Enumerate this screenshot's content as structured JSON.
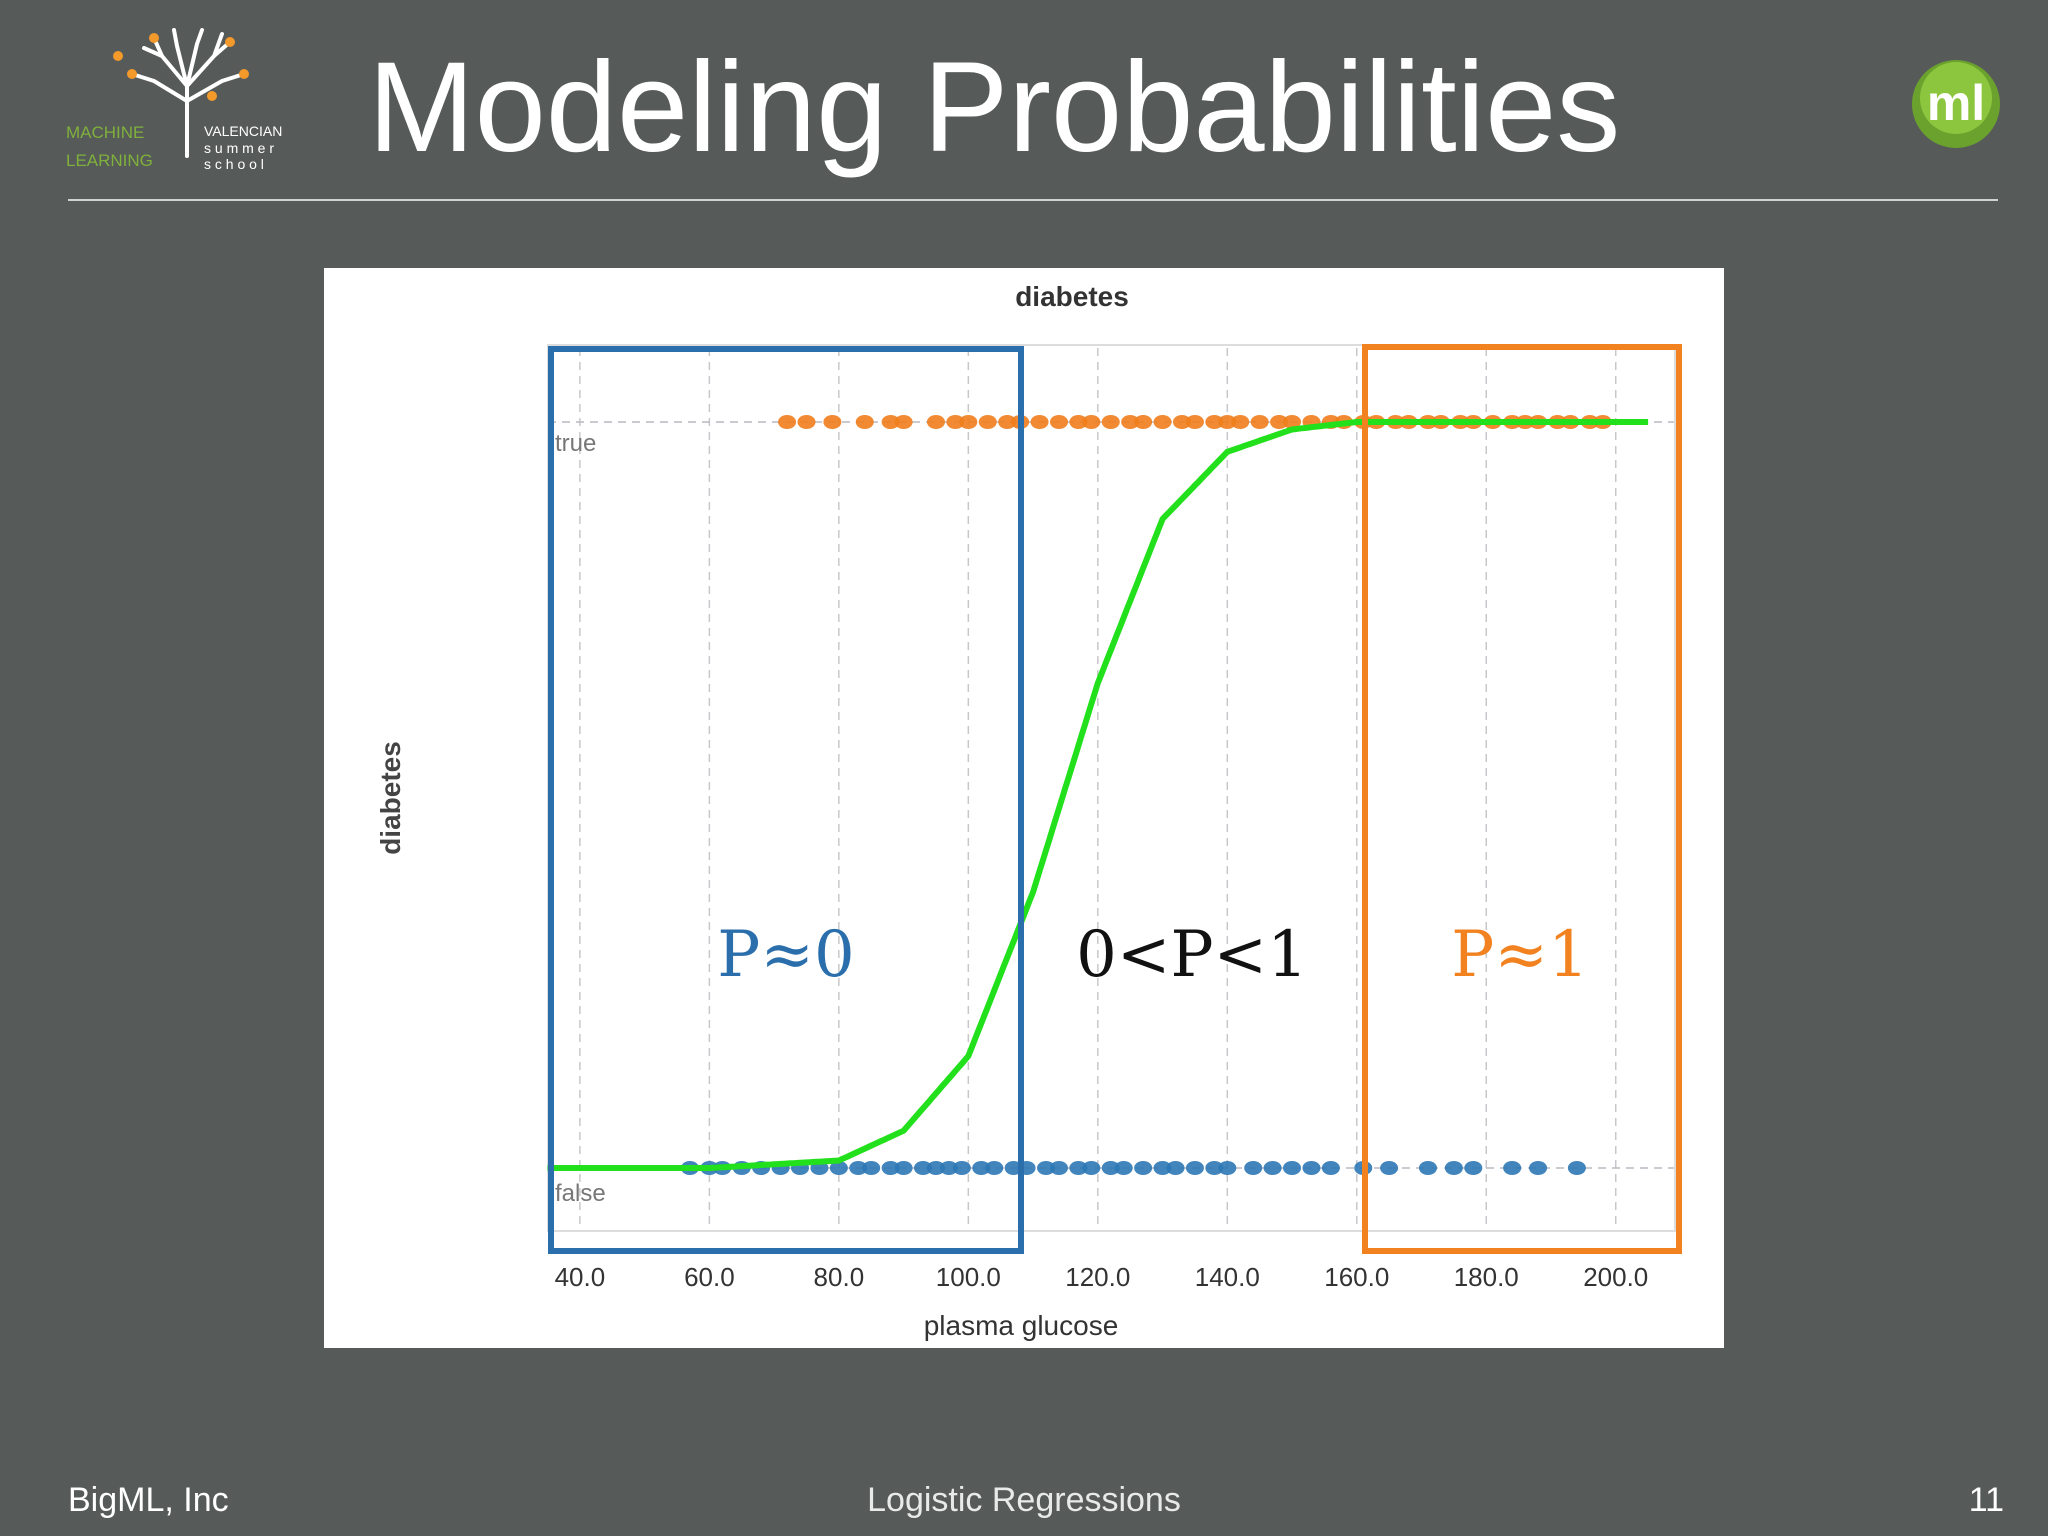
{
  "slide": {
    "title": "Modeling Probabilities",
    "footer_left": "BigML, Inc",
    "footer_center": "Logistic Regressions",
    "page_number": "11"
  },
  "logos": {
    "left": {
      "line1_left": "MACHINE",
      "line2_left": "LEARNING",
      "line1_right": "VALENCIAN",
      "line2_right": "s u m m e r",
      "line3_right": "s c h o o l"
    },
    "right": {
      "text": "ml"
    }
  },
  "colors": {
    "background": "#565b59",
    "true_points": "#f07d1c",
    "false_points": "#2e78b5",
    "curve": "#22e01b",
    "box_left": "#2a6fab",
    "box_right": "#f28220",
    "logo_green": "#7fb03b",
    "logo_orange": "#f39a2b"
  },
  "chart_data": {
    "type": "scatter",
    "title": "diabetes",
    "xlabel": "plasma glucose",
    "ylabel": "diabetes",
    "xlim": [
      36,
      209
    ],
    "x_ticks": [
      "40.0",
      "60.0",
      "80.0",
      "100.0",
      "120.0",
      "140.0",
      "160.0",
      "180.0",
      "200.0"
    ],
    "x_tick_values": [
      40,
      60,
      80,
      100,
      120,
      140,
      160,
      180,
      200
    ],
    "y_categories": [
      "false",
      "true"
    ],
    "grid": true,
    "series": [
      {
        "name": "true",
        "values": [
          [
            72,
            1
          ],
          [
            75,
            1
          ],
          [
            79,
            1
          ],
          [
            84,
            1
          ],
          [
            88,
            1
          ],
          [
            90,
            1
          ],
          [
            95,
            1
          ],
          [
            98,
            1
          ],
          [
            100,
            1
          ],
          [
            103,
            1
          ],
          [
            106,
            1
          ],
          [
            108,
            1
          ],
          [
            111,
            1
          ],
          [
            114,
            1
          ],
          [
            117,
            1
          ],
          [
            119,
            1
          ],
          [
            122,
            1
          ],
          [
            125,
            1
          ],
          [
            127,
            1
          ],
          [
            130,
            1
          ],
          [
            133,
            1
          ],
          [
            135,
            1
          ],
          [
            138,
            1
          ],
          [
            140,
            1
          ],
          [
            142,
            1
          ],
          [
            145,
            1
          ],
          [
            148,
            1
          ],
          [
            150,
            1
          ],
          [
            153,
            1
          ],
          [
            156,
            1
          ],
          [
            158,
            1
          ],
          [
            161,
            1
          ],
          [
            163,
            1
          ],
          [
            166,
            1
          ],
          [
            168,
            1
          ],
          [
            171,
            1
          ],
          [
            173,
            1
          ],
          [
            176,
            1
          ],
          [
            178,
            1
          ],
          [
            181,
            1
          ],
          [
            184,
            1
          ],
          [
            186,
            1
          ],
          [
            188,
            1
          ],
          [
            191,
            1
          ],
          [
            193,
            1
          ],
          [
            196,
            1
          ],
          [
            198,
            1
          ]
        ]
      },
      {
        "name": "false",
        "values": [
          [
            57,
            0
          ],
          [
            60,
            0
          ],
          [
            62,
            0
          ],
          [
            65,
            0
          ],
          [
            68,
            0
          ],
          [
            71,
            0
          ],
          [
            74,
            0
          ],
          [
            77,
            0
          ],
          [
            80,
            0
          ],
          [
            83,
            0
          ],
          [
            85,
            0
          ],
          [
            88,
            0
          ],
          [
            90,
            0
          ],
          [
            93,
            0
          ],
          [
            95,
            0
          ],
          [
            97,
            0
          ],
          [
            99,
            0
          ],
          [
            102,
            0
          ],
          [
            104,
            0
          ],
          [
            107,
            0
          ],
          [
            109,
            0
          ],
          [
            112,
            0
          ],
          [
            114,
            0
          ],
          [
            117,
            0
          ],
          [
            119,
            0
          ],
          [
            122,
            0
          ],
          [
            124,
            0
          ],
          [
            127,
            0
          ],
          [
            130,
            0
          ],
          [
            132,
            0
          ],
          [
            135,
            0
          ],
          [
            138,
            0
          ],
          [
            140,
            0
          ],
          [
            144,
            0
          ],
          [
            147,
            0
          ],
          [
            150,
            0
          ],
          [
            153,
            0
          ],
          [
            156,
            0
          ],
          [
            161,
            0
          ],
          [
            165,
            0
          ],
          [
            171,
            0
          ],
          [
            175,
            0
          ],
          [
            178,
            0
          ],
          [
            184,
            0
          ],
          [
            188,
            0
          ],
          [
            194,
            0
          ]
        ]
      }
    ],
    "curve": {
      "type": "logistic",
      "points": [
        [
          35,
          0.0
        ],
        [
          60,
          0.0
        ],
        [
          80,
          0.01
        ],
        [
          90,
          0.05
        ],
        [
          100,
          0.15
        ],
        [
          110,
          0.37
        ],
        [
          120,
          0.65
        ],
        [
          130,
          0.87
        ],
        [
          140,
          0.96
        ],
        [
          150,
          0.99
        ],
        [
          160,
          1.0
        ],
        [
          205,
          1.0
        ]
      ]
    },
    "annotations": [
      {
        "text": "P≈0",
        "color": "#2a6fab",
        "x_range": [
          35,
          101
        ]
      },
      {
        "text": "0<P<1",
        "x_range": [
          101,
          159
        ]
      },
      {
        "text": "P≈1",
        "color": "#f28220",
        "x_range": [
          159,
          208
        ]
      }
    ]
  }
}
